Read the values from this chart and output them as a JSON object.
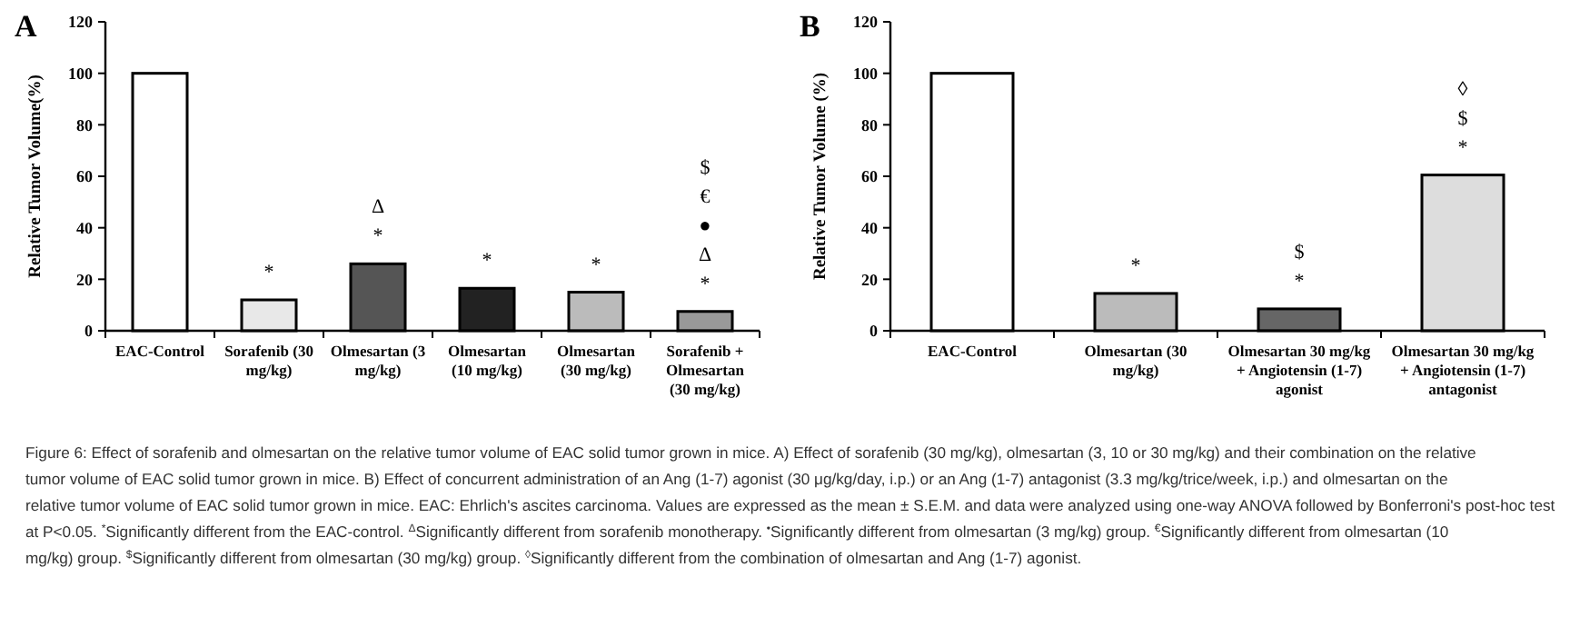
{
  "chart_data": [
    {
      "type": "bar",
      "title": "A",
      "ylabel": "Relative Tumor Volume(%)",
      "categories": [
        "EAC-Control",
        "Sorafenib (30 mg/kg)",
        "Olmesartan (3 mg/kg)",
        "Olmesartan (10 mg/kg)",
        "Olmesartan (30 mg/kg)",
        "Sorafenib + Olmesartan (30 mg/kg)"
      ],
      "values": [
        100,
        12,
        26,
        16.5,
        15,
        7.5
      ],
      "colors": [
        "#ffffff",
        "#e8e8e8",
        "#555555",
        "#222222",
        "#bbbbbb",
        "#999999"
      ],
      "ylim": [
        0,
        120
      ],
      "yticks": [
        0,
        20,
        40,
        60,
        80,
        100,
        120
      ],
      "value_labels": [
        null,
        "*",
        "Δ\n*",
        "*",
        "*",
        "$\n€\n●\nΔ\n*"
      ],
      "annotations": [
        "Figure 6: Effect of sorafenib and olmesartan on the relative tumor volume of EAC solid tumor grown in mice. A) Effect of sorafenib (30 mg/kg), olmesartan (3, 10 or 30 mg/kg) and their combination on the relative tumor volume of EAC solid tumor grown in mice. B) Effect of concurrent administration of an Ang (1-7) agonist (30 μg/kg/day, i.p.) or an Ang (1-7) antagonist (3.3 mg/kg/trice/week, i.p.) and olmesartan on the relative tumor volume of EAC solid tumor grown in mice. EAC: Ehrlich's ascites carcinoma. Values are expressed as the mean ± S.E.M. and data were analyzed using one-way ANOVA followed by Bonferroni's post-hoc test at P<0.05. $^{*}$Significantly different from the EAC-control. $^{Δ}$Significantly different from sorafenib monotherapy. $^{•}$Significantly different from olmesartan (3 mg/kg) group. $^{€}$Significantly different from olmesartan (10 mg/kg) group. $^{$}$Significantly different from olmesartan (30 mg/kg) group. $^{◊}$Significantly different from the combination of olmesartan and Ang (1-7) agonist."
      ]
    },
    {
      "type": "bar",
      "title": "B",
      "ylabel": "Relative Tumor Volume (%)",
      "categories": [
        "EAC-Control",
        "Olmesartan (30 mg/kg)",
        "Olmesartan 30 mg/kg + Angiotensin (1-7) agonist",
        "Olmesartan 30 mg/kg + Angiotensin (1-7) antagonist"
      ],
      "values": [
        100,
        14.5,
        8.5,
        60.5
      ],
      "colors": [
        "#ffffff",
        "#bbbbbb",
        "#666666",
        "#dddddd"
      ],
      "ylim": [
        0,
        120
      ],
      "yticks": [
        0,
        20,
        40,
        60,
        80,
        100,
        120
      ],
      "value_labels": [
        null,
        "*",
        "$\n*",
        "◊\n$\n*"
      ]
    }
  ]
}
